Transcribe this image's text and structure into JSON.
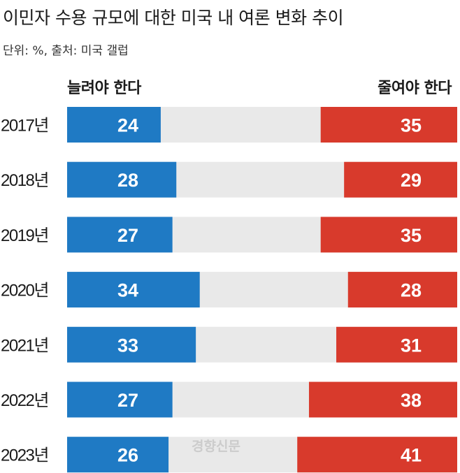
{
  "header": {
    "title": "이민자 수용 규모에 대한 미국 내 여론 변화 추이",
    "subtitle": "단위: %, 출처: 미국 갤럽"
  },
  "watermark": "경향신문",
  "chart_data": {
    "type": "bar",
    "orientation": "horizontal-diverging",
    "categories": [
      "2017년",
      "2018년",
      "2019년",
      "2020년",
      "2021년",
      "2022년",
      "2023년"
    ],
    "series": [
      {
        "name": "늘려야 한다",
        "values": [
          24,
          28,
          27,
          34,
          33,
          27,
          26
        ],
        "color": "#1f7ac4",
        "align": "left"
      },
      {
        "name": "줄여야 한다",
        "values": [
          35,
          29,
          35,
          28,
          31,
          38,
          41
        ],
        "color": "#d83a2c",
        "align": "right"
      }
    ],
    "background_color": "#e9e9e9",
    "title": "이민자 수용 규모에 대한 미국 내 여론 변화 추이",
    "xlabel": "",
    "ylabel": "",
    "xlim": [
      0,
      100
    ],
    "grid": false,
    "legend": "top"
  }
}
